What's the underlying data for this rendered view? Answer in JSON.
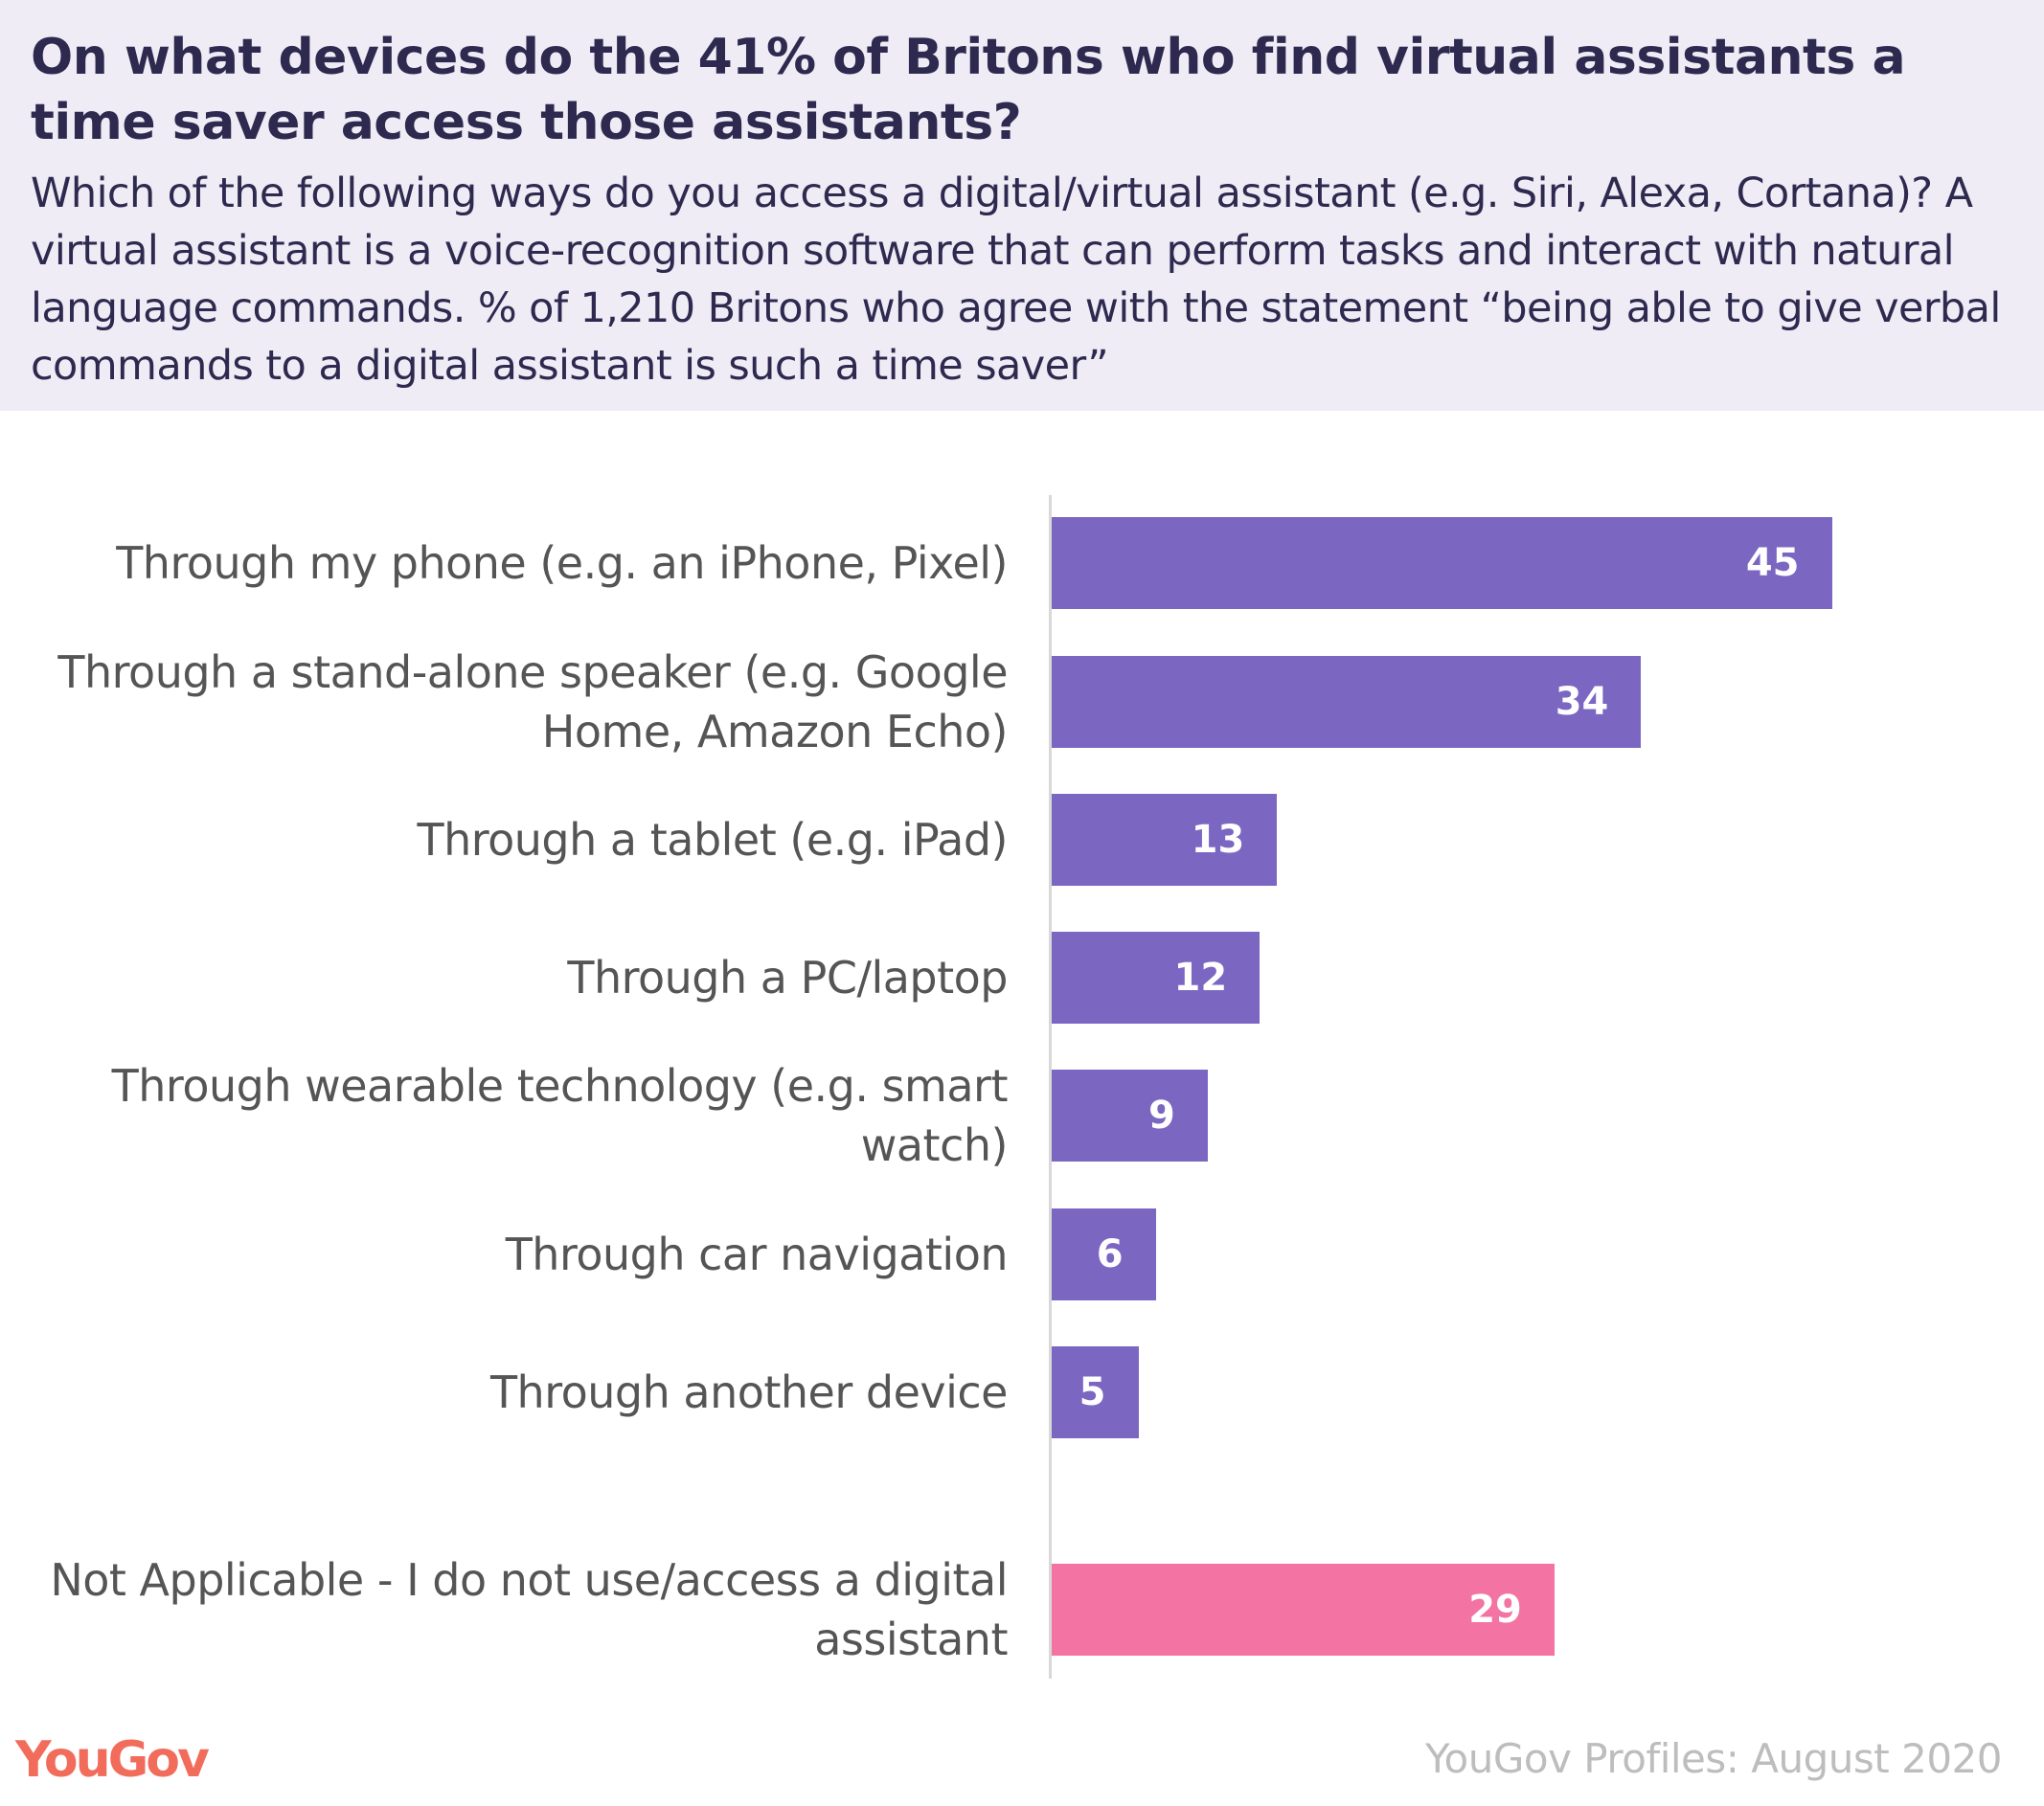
{
  "title": "On what devices do the 41% of Britons who find virtual assistants a time saver access those assistants?",
  "subtitle": "Which of the following ways do you access a digital/virtual assistant (e.g. Siri, Alexa, Cortana)? A virtual assistant is a voice-recognition software that can perform tasks and interact with natural language commands. % of 1,210 Britons who agree with the statement “being able to give verbal commands to a digital assistant is such a time saver”",
  "footer": {
    "logo": "YouGov",
    "source": "YouGov Profiles: August 2020"
  },
  "colors": {
    "primary": "#7b66c2",
    "not_applicable": "#f373a3",
    "header_bg": "#efecf6",
    "logo": "#f26c5c"
  },
  "chart_data": {
    "type": "bar",
    "orientation": "horizontal",
    "categories": [
      "Through my phone (e.g. an iPhone, Pixel)",
      "Through a stand-alone speaker (e.g. Google Home, Amazon Echo)",
      "Through a tablet (e.g. iPad)",
      "Through a PC/laptop",
      "Through wearable technology (e.g. smart watch)",
      "Through car navigation",
      "Through another device",
      "Not Applicable - I do not use/access a digital assistant"
    ],
    "values": [
      45,
      34,
      13,
      12,
      9,
      6,
      5,
      29
    ],
    "bar_colors": [
      "#7b66c2",
      "#7b66c2",
      "#7b66c2",
      "#7b66c2",
      "#7b66c2",
      "#7b66c2",
      "#7b66c2",
      "#f373a3"
    ],
    "xlim": [
      0,
      100
    ],
    "grid": false,
    "legend": "none",
    "data_labels": true
  }
}
